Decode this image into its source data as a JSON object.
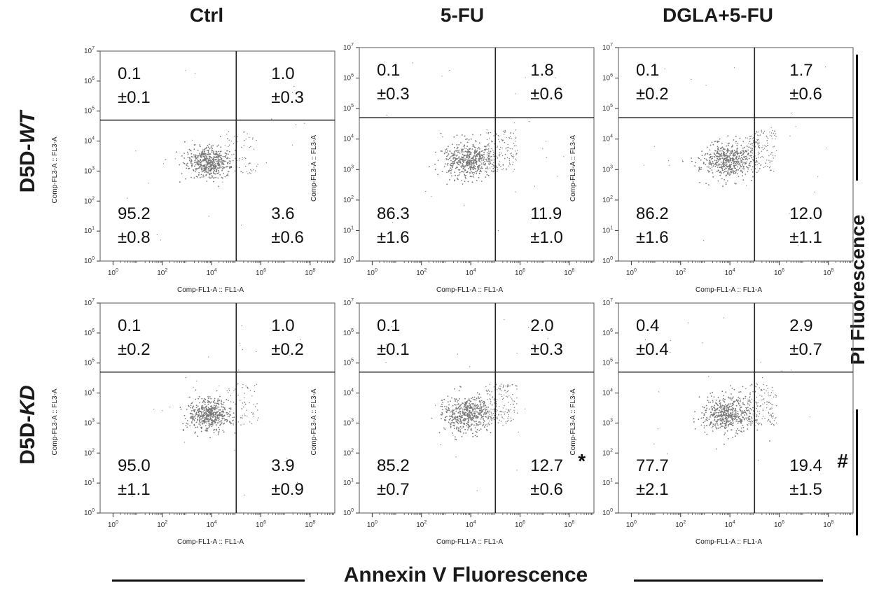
{
  "columns": [
    "Ctrl",
    "5-FU",
    "DGLA+5-FU"
  ],
  "rows": [
    {
      "label_prefix": "D5D-",
      "label_italic": "WT"
    },
    {
      "label_prefix": "D5D-",
      "label_italic": "KD"
    }
  ],
  "side_label": "PI Fluorescence",
  "bottom_label": "Annexin V Fluorescence",
  "x_axis_title": "Comp-FL1-A :: FL1-A",
  "y_axis_title": "Comp-FL3-A :: FL3-A",
  "chart_data": {
    "type": "scatter",
    "xlabel": "Comp-FL1-A :: FL1-A",
    "ylabel": "Comp-FL3-A :: FL3-A",
    "xscale": "log",
    "yscale": "log",
    "xlim": [
      0.3,
      1000000000
    ],
    "ylim": [
      1,
      10000000
    ],
    "x_ticks": [
      1,
      100,
      10000,
      1000000,
      100000000
    ],
    "y_ticks": [
      1,
      10,
      100,
      1000,
      10000,
      100000,
      1000000,
      10000000
    ],
    "gate": {
      "x": 100000,
      "y": 50000
    },
    "quadrants": [
      "upper-left",
      "upper-right",
      "lower-left",
      "lower-right"
    ],
    "panels": [
      {
        "row": "D5D-WT",
        "column": "Ctrl",
        "UL": {
          "value": "0.1",
          "sd": "±0.1"
        },
        "UR": {
          "value": "1.0",
          "sd": "±0.3"
        },
        "LL": {
          "value": "95.2",
          "sd": "±0.8"
        },
        "LR": {
          "value": "3.6",
          "sd": "±0.6"
        },
        "mark": ""
      },
      {
        "row": "D5D-WT",
        "column": "5-FU",
        "UL": {
          "value": "0.1",
          "sd": "±0.3"
        },
        "UR": {
          "value": "1.8",
          "sd": "±0.6"
        },
        "LL": {
          "value": "86.3",
          "sd": "±1.6"
        },
        "LR": {
          "value": "11.9",
          "sd": "±1.0"
        },
        "mark": ""
      },
      {
        "row": "D5D-WT",
        "column": "DGLA+5-FU",
        "UL": {
          "value": "0.1",
          "sd": "±0.2"
        },
        "UR": {
          "value": "1.7",
          "sd": "±0.6"
        },
        "LL": {
          "value": "86.2",
          "sd": "±1.6"
        },
        "LR": {
          "value": "12.0",
          "sd": "±1.1"
        },
        "mark": ""
      },
      {
        "row": "D5D-KD",
        "column": "Ctrl",
        "UL": {
          "value": "0.1",
          "sd": "±0.2"
        },
        "UR": {
          "value": "1.0",
          "sd": "±0.2"
        },
        "LL": {
          "value": "95.0",
          "sd": "±1.1"
        },
        "LR": {
          "value": "3.9",
          "sd": "±0.9"
        },
        "mark": ""
      },
      {
        "row": "D5D-KD",
        "column": "5-FU",
        "UL": {
          "value": "0.1",
          "sd": "±0.1"
        },
        "UR": {
          "value": "2.0",
          "sd": "±0.3"
        },
        "LL": {
          "value": "85.2",
          "sd": "±0.7"
        },
        "LR": {
          "value": "12.7",
          "sd": "±0.6"
        },
        "mark": "*"
      },
      {
        "row": "D5D-KD",
        "column": "DGLA+5-FU",
        "UL": {
          "value": "0.4",
          "sd": "±0.4"
        },
        "UR": {
          "value": "2.9",
          "sd": "±0.7"
        },
        "LL": {
          "value": "77.7",
          "sd": "±2.1"
        },
        "LR": {
          "value": "19.4",
          "sd": "±1.5"
        },
        "mark": "#"
      }
    ]
  }
}
